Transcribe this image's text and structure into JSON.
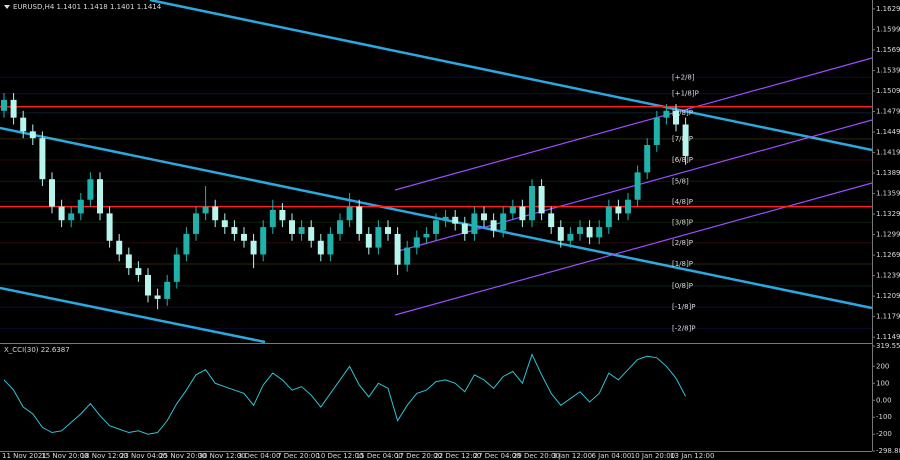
{
  "chart_data": [
    {
      "type": "candlestick",
      "title": "EURUSD,H4  1.1401 1.1418 1.1401 1.1414",
      "up_color": "#20b2aa",
      "down_color": "#b8f5ec",
      "ylim": [
        1.1142,
        1.1642
      ],
      "yticks": [
        1.1629,
        1.1599,
        1.1569,
        1.1539,
        1.1509,
        1.1479,
        1.1449,
        1.1419,
        1.1389,
        1.1359,
        1.1329,
        1.1299,
        1.1269,
        1.1239,
        1.1209,
        1.1179,
        1.1149
      ],
      "ohlc": [
        [
          1.148,
          1.1506,
          1.147,
          1.1496
        ],
        [
          1.1496,
          1.1506,
          1.146,
          1.147
        ],
        [
          1.147,
          1.148,
          1.144,
          1.145
        ],
        [
          1.145,
          1.146,
          1.143,
          1.144
        ],
        [
          1.144,
          1.145,
          1.137,
          1.138
        ],
        [
          1.138,
          1.139,
          1.133,
          1.134
        ],
        [
          1.134,
          1.135,
          1.131,
          1.132
        ],
        [
          1.132,
          1.134,
          1.131,
          1.133
        ],
        [
          1.133,
          1.136,
          1.132,
          1.135
        ],
        [
          1.135,
          1.139,
          1.134,
          1.138
        ],
        [
          1.138,
          1.139,
          1.132,
          1.133
        ],
        [
          1.133,
          1.134,
          1.128,
          1.129
        ],
        [
          1.129,
          1.13,
          1.126,
          1.127
        ],
        [
          1.127,
          1.128,
          1.124,
          1.125
        ],
        [
          1.125,
          1.126,
          1.123,
          1.124
        ],
        [
          1.124,
          1.125,
          1.12,
          1.121
        ],
        [
          1.121,
          1.122,
          1.119,
          1.1205
        ],
        [
          1.1205,
          1.124,
          1.1195,
          1.123
        ],
        [
          1.123,
          1.128,
          1.122,
          1.127
        ],
        [
          1.127,
          1.131,
          1.126,
          1.13
        ],
        [
          1.13,
          1.134,
          1.129,
          1.133
        ],
        [
          1.133,
          1.137,
          1.132,
          1.134
        ],
        [
          1.134,
          1.135,
          1.131,
          1.132
        ],
        [
          1.132,
          1.133,
          1.13,
          1.131
        ],
        [
          1.131,
          1.132,
          1.129,
          1.13
        ],
        [
          1.13,
          1.131,
          1.128,
          1.129
        ],
        [
          1.129,
          1.13,
          1.125,
          1.127
        ],
        [
          1.127,
          1.132,
          1.126,
          1.131
        ],
        [
          1.131,
          1.135,
          1.13,
          1.1335
        ],
        [
          1.1335,
          1.1345,
          1.131,
          1.132
        ],
        [
          1.132,
          1.133,
          1.129,
          1.13
        ],
        [
          1.13,
          1.132,
          1.129,
          1.131
        ],
        [
          1.131,
          1.132,
          1.128,
          1.129
        ],
        [
          1.129,
          1.13,
          1.126,
          1.127
        ],
        [
          1.127,
          1.131,
          1.126,
          1.13
        ],
        [
          1.13,
          1.133,
          1.129,
          1.132
        ],
        [
          1.132,
          1.136,
          1.131,
          1.134
        ],
        [
          1.134,
          1.135,
          1.129,
          1.13
        ],
        [
          1.13,
          1.131,
          1.127,
          1.128
        ],
        [
          1.128,
          1.132,
          1.127,
          1.131
        ],
        [
          1.131,
          1.132,
          1.129,
          1.13
        ],
        [
          1.13,
          1.131,
          1.124,
          1.1255
        ],
        [
          1.1255,
          1.129,
          1.1245,
          1.128
        ],
        [
          1.128,
          1.1305,
          1.127,
          1.1295
        ],
        [
          1.1295,
          1.131,
          1.1285,
          1.13
        ],
        [
          1.13,
          1.133,
          1.129,
          1.132
        ],
        [
          1.132,
          1.1335,
          1.131,
          1.1325
        ],
        [
          1.1325,
          1.1335,
          1.1305,
          1.1315
        ],
        [
          1.1315,
          1.1325,
          1.129,
          1.13
        ],
        [
          1.13,
          1.134,
          1.129,
          1.133
        ],
        [
          1.133,
          1.134,
          1.131,
          1.132
        ],
        [
          1.132,
          1.133,
          1.1295,
          1.1305
        ],
        [
          1.1305,
          1.134,
          1.1295,
          1.133
        ],
        [
          1.133,
          1.135,
          1.132,
          1.134
        ],
        [
          1.134,
          1.135,
          1.131,
          1.132
        ],
        [
          1.132,
          1.138,
          1.131,
          1.137
        ],
        [
          1.137,
          1.138,
          1.132,
          1.133
        ],
        [
          1.133,
          1.134,
          1.13,
          1.131
        ],
        [
          1.131,
          1.132,
          1.128,
          1.129
        ],
        [
          1.129,
          1.131,
          1.128,
          1.13
        ],
        [
          1.13,
          1.132,
          1.129,
          1.131
        ],
        [
          1.131,
          1.132,
          1.1285,
          1.1295
        ],
        [
          1.1295,
          1.132,
          1.1285,
          1.131
        ],
        [
          1.131,
          1.135,
          1.13,
          1.134
        ],
        [
          1.134,
          1.135,
          1.132,
          1.133
        ],
        [
          1.133,
          1.136,
          1.132,
          1.135
        ],
        [
          1.135,
          1.14,
          1.134,
          1.139
        ],
        [
          1.139,
          1.144,
          1.138,
          1.143
        ],
        [
          1.143,
          1.148,
          1.142,
          1.147
        ],
        [
          1.147,
          1.149,
          1.146,
          1.148
        ],
        [
          1.148,
          1.149,
          1.145,
          1.146
        ],
        [
          1.146,
          1.147,
          1.1401,
          1.1414
        ]
      ],
      "levels": [
        {
          "label": "[+2/8]",
          "value": 1.1529,
          "color": "#3a3aff"
        },
        {
          "label": "[+1/8]P",
          "value": 1.1505,
          "color": "#a040ff"
        },
        {
          "label": "[8/8]P",
          "value": 1.1477,
          "color": "#22c0d8"
        },
        {
          "label": "[7/8]P",
          "value": 1.1439,
          "color": "#e8e040"
        },
        {
          "label": "[6/8]P",
          "value": 1.1408,
          "color": "#ff3030"
        },
        {
          "label": "[5/8]",
          "value": 1.1377,
          "color": "#30c030"
        },
        {
          "label": "[4/8]P",
          "value": 1.1347,
          "color": "#3a3aff"
        },
        {
          "label": "[3/8]P",
          "value": 1.1317,
          "color": "#30c030"
        },
        {
          "label": "[2/8]P",
          "value": 1.1287,
          "color": "#ff3030"
        },
        {
          "label": "[1/8]P",
          "value": 1.1256,
          "color": "#e8e040"
        },
        {
          "label": "[0/8]P",
          "value": 1.1224,
          "color": "#22c0d8"
        },
        {
          "label": "[-1/8]P",
          "value": 1.1193,
          "color": "#a040ff"
        },
        {
          "label": "[-2/8]P",
          "value": 1.1162,
          "color": "#3a3aff"
        }
      ],
      "lines": [
        {
          "value": 1.1486,
          "color": "#ff2020"
        },
        {
          "value": 1.134,
          "color": "#ff2020"
        }
      ],
      "x_labels": [
        "11 Nov 2021",
        "15 Nov 20:00",
        "18 Nov 12:00",
        "23 Nov 04:00",
        "25 Nov 20:00",
        "30 Nov 12:00",
        "3 Dec 04:00",
        "7 Dec 20:00",
        "10 Dec 12:00",
        "15 Dec 04:00",
        "17 Dec 20:00",
        "22 Dec 12:00",
        "27 Dec 04:00",
        "29 Dec 20:00",
        "3 Jan 12:00",
        "6 Jan 04:00",
        "10 Jan 20:00",
        "13 Jan 12:00"
      ]
    },
    {
      "type": "line",
      "title": "X_CCI(30) 22.6387",
      "color": "#2ec4d6",
      "ylim": [
        -298.8871,
        319.5552
      ],
      "yticks": [
        319.5552,
        200,
        100,
        {
          "value": 0,
          "label": "0.00"
        },
        -100,
        -200,
        -298.8871
      ],
      "values": [
        120,
        60,
        -40,
        -80,
        -160,
        -190,
        -180,
        -130,
        -80,
        -20,
        -90,
        -150,
        -170,
        -190,
        -180,
        -200,
        -190,
        -120,
        -20,
        60,
        150,
        180,
        100,
        80,
        60,
        40,
        -30,
        90,
        160,
        120,
        60,
        80,
        30,
        -40,
        40,
        120,
        200,
        90,
        20,
        100,
        70,
        -120,
        -30,
        40,
        60,
        110,
        120,
        100,
        50,
        150,
        120,
        70,
        140,
        170,
        100,
        270,
        150,
        40,
        -30,
        10,
        50,
        -10,
        40,
        160,
        120,
        180,
        240,
        260,
        250,
        200,
        130,
        22.6387
      ]
    }
  ]
}
